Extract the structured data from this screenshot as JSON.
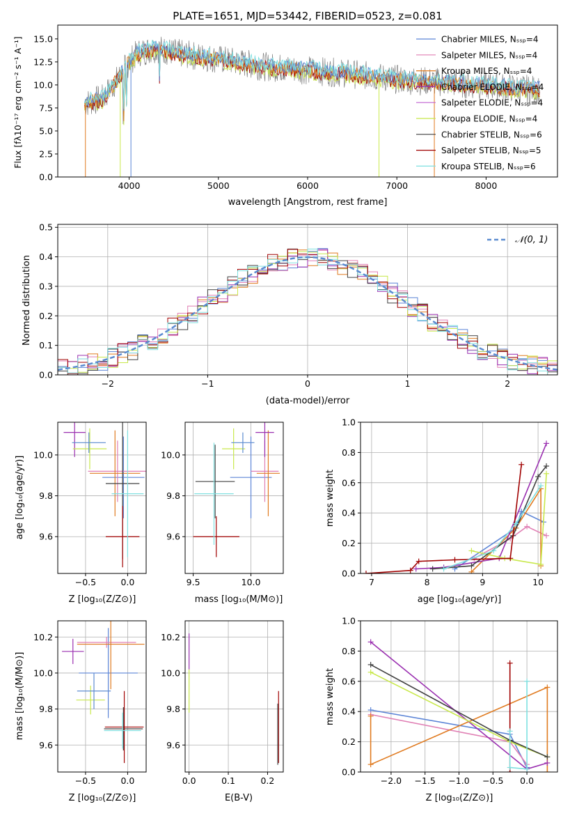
{
  "colors": {
    "chabrier_miles": "#5b84d6",
    "salpeter_miles": "#e07fb4",
    "kroupa_miles": "#e07a1f",
    "chabrier_elodie": "#9a2fb0",
    "salpeter_elodie": "#c060d0",
    "kroupa_elodie": "#c8e84a",
    "chabrier_stelib": "#404040",
    "salpeter_stelib": "#a00000",
    "kroupa_stelib": "#7ee0e0",
    "gaussian": "#5b8bd0",
    "grid": "#b0b0b0"
  },
  "chart_data": [
    {
      "id": "spectrum",
      "type": "line",
      "title": "PLATE=1651, MJD=53442, FIBERID=0523, z=0.081",
      "xlabel": "wavelength [Angstrom, rest frame]",
      "ylabel": "Flux [fλ10⁻¹⁷ erg cm⁻² s⁻¹ A⁻¹]",
      "xlim": [
        3200,
        8800
      ],
      "ylim": [
        0,
        16.5
      ],
      "xticks": [
        4000,
        5000,
        6000,
        7000,
        8000
      ],
      "yticks": [
        "0.0",
        "2.5",
        "5.0",
        "7.5",
        "10.0",
        "12.5",
        "15.0"
      ],
      "grid": false,
      "legend_position": "top-right",
      "series": [
        {
          "name": "Chabrier MILES, Nₛₛₚ=4",
          "color_key": "chabrier_miles"
        },
        {
          "name": "Salpeter MILES, Nₛₛₚ=4",
          "color_key": "salpeter_miles"
        },
        {
          "name": "Kroupa MILES, Nₛₛₚ=4",
          "color_key": "kroupa_miles"
        },
        {
          "name": "Chabrier ELODIE, Nₛₛₚ=4",
          "color_key": "chabrier_elodie"
        },
        {
          "name": "Salpeter ELODIE, Nₛₛₚ=4",
          "color_key": "salpeter_elodie"
        },
        {
          "name": "Kroupa ELODIE, Nₛₛₚ=4",
          "color_key": "kroupa_elodie"
        },
        {
          "name": "Chabrier STELIB, Nₛₛₚ=6",
          "color_key": "chabrier_stelib"
        },
        {
          "name": "Salpeter STELIB, Nₛₛₚ=5",
          "color_key": "salpeter_stelib"
        },
        {
          "name": "Kroupa STELIB, Nₛₛₚ=6",
          "color_key": "kroupa_stelib"
        }
      ],
      "continuum": {
        "x": [
          3500,
          3700,
          3900,
          4000,
          4100,
          4300,
          4500,
          4700,
          5000,
          5500,
          6000,
          6500,
          7000,
          7500,
          8000,
          8500
        ],
        "y": [
          8.0,
          8.5,
          11.0,
          12.5,
          13.5,
          14.0,
          13.5,
          13.2,
          12.8,
          12.0,
          11.6,
          11.2,
          10.6,
          10.3,
          9.9,
          9.5
        ]
      }
    },
    {
      "id": "residuals",
      "type": "histogram",
      "xlabel": "(data-model)/error",
      "ylabel": "Normed distribution",
      "xlim": [
        -2.5,
        2.5
      ],
      "ylim": [
        0,
        0.51
      ],
      "xticks": [
        "−2",
        "−1",
        "0",
        "1",
        "2"
      ],
      "yticks": [
        "0.0",
        "0.1",
        "0.2",
        "0.3",
        "0.4",
        "0.5"
      ],
      "grid": true,
      "legend": "𝒩(0, 1)",
      "legend_position": "top-right",
      "bin_width": 0.1,
      "gaussian": {
        "mean": 0,
        "sigma": 1
      }
    },
    {
      "id": "age_vs_Z",
      "type": "errorbar",
      "xlabel": "Z [log₁₀(Z/Z⊙)]",
      "ylabel": "age  [log₁₀(age/yr)]",
      "xlim": [
        -0.83,
        0.22
      ],
      "ylim": [
        9.42,
        10.16
      ],
      "xticks": [
        "−0.5",
        "0.0"
      ],
      "yticks": [
        "9.6",
        "9.8",
        "10.0"
      ],
      "grid": true,
      "points": [
        {
          "c": "chabrier_miles",
          "x": -0.05,
          "xe": 0.25,
          "y": 9.89,
          "ye": 0.2
        },
        {
          "c": "salpeter_miles",
          "x": -0.12,
          "xe": 0.35,
          "y": 9.92,
          "ye": 0.15
        },
        {
          "c": "kroupa_miles",
          "x": -0.15,
          "xe": 0.3,
          "y": 9.91,
          "ye": 0.21
        },
        {
          "c": "chabrier_elodie",
          "x": -0.63,
          "xe": 0.13,
          "y": 10.11,
          "ye": 0.12
        },
        {
          "c": "kroupa_elodie",
          "x": -0.45,
          "xe": 0.2,
          "y": 10.03,
          "ye": 0.1
        },
        {
          "c": "chabrier_stelib",
          "x": -0.06,
          "xe": 0.2,
          "y": 9.86,
          "ye": 0.37
        },
        {
          "c": "salpeter_stelib",
          "x": -0.06,
          "xe": 0.2,
          "y": 9.6,
          "ye": 0.15
        },
        {
          "c": "kroupa_stelib",
          "x": 0.0,
          "xe": 0.19,
          "y": 9.81,
          "ye": 0.31
        },
        {
          "c": "gaussian",
          "x": -0.46,
          "xe": 0.2,
          "y": 10.06,
          "ye": 0.05
        }
      ]
    },
    {
      "id": "age_vs_mass",
      "type": "errorbar",
      "xlabel": "mass [log₁₀(M/M⊙)]",
      "xlim": [
        9.43,
        10.28
      ],
      "ylim": [
        9.42,
        10.16
      ],
      "xticks": [
        "9.5",
        "10.0"
      ],
      "yticks": [
        "9.6",
        "9.8",
        "10.0"
      ],
      "grid": true,
      "points": [
        {
          "c": "chabrier_miles",
          "x": 10.0,
          "xe": 0.18,
          "y": 9.89,
          "ye": 0.2
        },
        {
          "c": "salpeter_miles",
          "x": 10.12,
          "xe": 0.12,
          "y": 9.92,
          "ye": 0.15
        },
        {
          "c": "kroupa_miles",
          "x": 10.15,
          "xe": 0.1,
          "y": 9.91,
          "ye": 0.21
        },
        {
          "c": "chabrier_elodie",
          "x": 10.12,
          "xe": 0.08,
          "y": 10.11,
          "ye": 0.12
        },
        {
          "c": "kroupa_elodie",
          "x": 9.85,
          "xe": 0.1,
          "y": 10.03,
          "ye": 0.1
        },
        {
          "c": "chabrier_stelib",
          "x": 9.69,
          "xe": 0.17,
          "y": 9.87,
          "ye": 0.18
        },
        {
          "c": "salpeter_stelib",
          "x": 9.7,
          "xe": 0.2,
          "y": 9.6,
          "ye": 0.1
        },
        {
          "c": "kroupa_stelib",
          "x": 9.68,
          "xe": 0.17,
          "y": 9.81,
          "ye": 0.25
        },
        {
          "c": "gaussian",
          "x": 9.93,
          "xe": 0.1,
          "y": 10.06,
          "ye": 0.05
        }
      ]
    },
    {
      "id": "massweight_vs_age",
      "type": "line",
      "xlabel": "age  [log₁₀(age/yr)]",
      "ylabel": "mass weight",
      "xlim": [
        6.8,
        10.35
      ],
      "ylim": [
        0,
        1
      ],
      "xticks": [
        "7",
        "8",
        "9",
        "10"
      ],
      "yticks": [
        "0.0",
        "0.2",
        "0.4",
        "0.6",
        "0.8",
        "1.0"
      ],
      "grid": true,
      "series": [
        {
          "c": "chabrier_miles",
          "x": [
            8.5,
            9.6,
            9.7,
            10.1
          ],
          "y": [
            0.03,
            0.3,
            0.41,
            0.34
          ]
        },
        {
          "c": "salpeter_miles",
          "x": [
            8.85,
            9.5,
            9.8,
            10.15
          ],
          "y": [
            0.1,
            0.23,
            0.31,
            0.25
          ]
        },
        {
          "c": "kroupa_miles",
          "x": [
            8.8,
            9.6,
            10.05,
            10.05
          ],
          "y": [
            0.01,
            0.3,
            0.56,
            0.05
          ]
        },
        {
          "c": "chabrier_elodie",
          "x": [
            7.8,
            8.3,
            9.3,
            10.15
          ],
          "y": [
            0.03,
            0.04,
            0.1,
            0.86
          ]
        },
        {
          "c": "kroupa_elodie",
          "x": [
            8.8,
            9.4,
            10.05,
            10.15
          ],
          "y": [
            0.15,
            0.1,
            0.06,
            0.66
          ]
        },
        {
          "c": "chabrier_stelib",
          "x": [
            8.1,
            8.8,
            9.55,
            10.0,
            10.15
          ],
          "y": [
            0.03,
            0.05,
            0.25,
            0.64,
            0.71
          ]
        },
        {
          "c": "salpeter_stelib",
          "x": [
            6.9,
            7.7,
            7.85,
            8.5,
            9.5,
            9.7
          ],
          "y": [
            0.0,
            0.02,
            0.08,
            0.09,
            0.1,
            0.72
          ]
        },
        {
          "c": "kroupa_stelib",
          "x": [
            8.3,
            9.2,
            9.6,
            10.05
          ],
          "y": [
            0.03,
            0.15,
            0.33,
            0.58
          ]
        }
      ]
    },
    {
      "id": "mass_vs_Z",
      "type": "errorbar",
      "xlabel": "Z [log₁₀(Z/Z⊙)]",
      "ylabel": "mass [log₁₀(M/M⊙)]",
      "xlim": [
        -0.83,
        0.22
      ],
      "ylim": [
        9.45,
        10.29
      ],
      "xticks": [
        "−0.5",
        "0.0"
      ],
      "yticks": [
        "9.6",
        "9.8",
        "10.0",
        "10.2"
      ],
      "grid": true,
      "points": [
        {
          "c": "chabrier_miles",
          "x": -0.23,
          "xe": 0.35,
          "y": 10.0,
          "ye": 0.25
        },
        {
          "c": "salpeter_miles",
          "x": -0.25,
          "xe": 0.35,
          "y": 10.17,
          "ye": 0.03
        },
        {
          "c": "kroupa_miles",
          "x": -0.2,
          "xe": 0.4,
          "y": 10.16,
          "ye": 0.25
        },
        {
          "c": "chabrier_elodie",
          "x": -0.65,
          "xe": 0.13,
          "y": 10.12,
          "ye": 0.07
        },
        {
          "c": "kroupa_elodie",
          "x": -0.44,
          "xe": 0.17,
          "y": 9.85,
          "ye": 0.08
        },
        {
          "c": "chabrier_stelib",
          "x": -0.05,
          "xe": 0.23,
          "y": 9.69,
          "ye": 0.12
        },
        {
          "c": "salpeter_stelib",
          "x": -0.04,
          "xe": 0.23,
          "y": 9.7,
          "ye": 0.2
        },
        {
          "c": "kroupa_stelib",
          "x": -0.06,
          "xe": 0.22,
          "y": 9.68,
          "ye": 0.1
        },
        {
          "c": "gaussian",
          "x": -0.4,
          "xe": 0.2,
          "y": 9.9,
          "ye": 0.1
        }
      ]
    },
    {
      "id": "mass_vs_ebv",
      "type": "errorbar",
      "xlabel": "E(B-V)",
      "xlim": [
        -0.01,
        0.24
      ],
      "ylim": [
        9.45,
        10.29
      ],
      "xticks": [
        "0.0",
        "0.1",
        "0.2"
      ],
      "yticks": [
        "9.6",
        "9.8",
        "10.0",
        "10.2"
      ],
      "grid": true,
      "points": [
        {
          "c": "chabrier_elodie",
          "x": 0.0,
          "xe": 0.0,
          "y": 10.12,
          "ye": 0.1
        },
        {
          "c": "kroupa_elodie",
          "x": 0.0,
          "xe": 0.0,
          "y": 9.9,
          "ye": 0.12
        },
        {
          "c": "salpeter_stelib",
          "x": 0.228,
          "xe": 0.0,
          "y": 9.7,
          "ye": 0.2
        },
        {
          "c": "chabrier_stelib",
          "x": 0.226,
          "xe": 0.0,
          "y": 9.66,
          "ye": 0.17
        }
      ]
    },
    {
      "id": "massweight_vs_Z",
      "type": "line",
      "xlabel": "Z [log₁₀(Z/Z⊙)]",
      "ylabel": "mass weight",
      "xlim": [
        -2.45,
        0.45
      ],
      "ylim": [
        0,
        1
      ],
      "xticks": [
        "−2.0",
        "−1.5",
        "−1.0",
        "−0.5",
        "0.0"
      ],
      "yticks": [
        "0.0",
        "0.2",
        "0.4",
        "0.6",
        "0.8",
        "1.0"
      ],
      "grid": true,
      "series": [
        {
          "c": "chabrier_miles",
          "x": [
            -2.3,
            -0.25,
            0.0
          ],
          "y": [
            0.41,
            0.25,
            0.03
          ]
        },
        {
          "c": "salpeter_miles",
          "x": [
            -2.3,
            -0.25,
            0.0
          ],
          "y": [
            0.38,
            0.2,
            0.05
          ]
        },
        {
          "c": "kroupa_miles",
          "x": [
            -2.3,
            -2.3,
            0.3,
            0.3
          ],
          "y": [
            0.37,
            0.05,
            0.56,
            0.0
          ]
        },
        {
          "c": "chabrier_elodie",
          "x": [
            -2.3,
            0.0,
            0.3
          ],
          "y": [
            0.86,
            0.02,
            0.06
          ]
        },
        {
          "c": "kroupa_elodie",
          "x": [
            -2.3,
            -0.25,
            0.3
          ],
          "y": [
            0.66,
            0.2,
            0.1
          ]
        },
        {
          "c": "chabrier_stelib",
          "x": [
            -2.3,
            -0.25,
            0.3
          ],
          "y": [
            0.71,
            0.21,
            0.1
          ]
        },
        {
          "c": "salpeter_stelib",
          "x": [
            -0.25,
            -0.25
          ],
          "y": [
            0.0,
            0.72
          ]
        },
        {
          "c": "kroupa_stelib",
          "x": [
            -0.25,
            -0.25,
            0.0,
            0.0
          ],
          "y": [
            0.27,
            0.03,
            0.02,
            0.6
          ]
        }
      ]
    }
  ]
}
